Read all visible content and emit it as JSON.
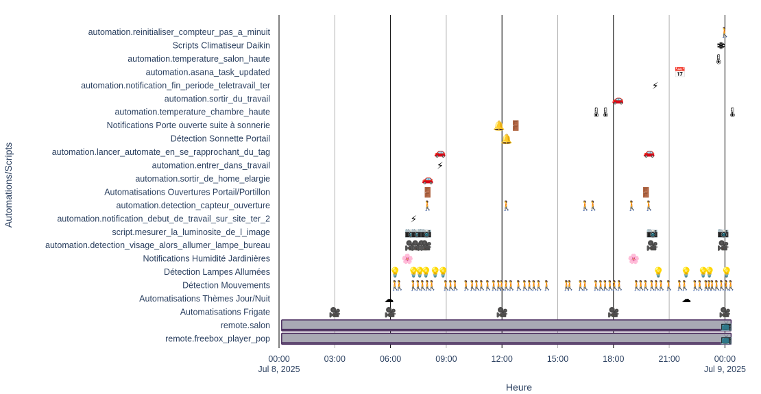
{
  "chart_data": {
    "type": "timeline",
    "xlabel": "Heure",
    "ylabel": "Automations/Scripts",
    "xlim": [
      "2025-07-08T00:00",
      "2025-07-09T01:10"
    ],
    "x_ticks": [
      {
        "time": "2025-07-08T00:00",
        "label": "00:00",
        "sub": "Jul 8, 2025"
      },
      {
        "time": "2025-07-08T03:00",
        "label": "03:00",
        "sub": ""
      },
      {
        "time": "2025-07-08T06:00",
        "label": "06:00",
        "sub": ""
      },
      {
        "time": "2025-07-08T09:00",
        "label": "09:00",
        "sub": ""
      },
      {
        "time": "2025-07-08T12:00",
        "label": "12:00",
        "sub": ""
      },
      {
        "time": "2025-07-08T15:00",
        "label": "15:00",
        "sub": ""
      },
      {
        "time": "2025-07-08T18:00",
        "label": "18:00",
        "sub": ""
      },
      {
        "time": "2025-07-08T21:00",
        "label": "21:00",
        "sub": ""
      },
      {
        "time": "2025-07-09T00:00",
        "label": "00:00",
        "sub": "Jul 9, 2025"
      }
    ],
    "major_gridlines": [
      "2025-07-08T00:00",
      "2025-07-08T06:00",
      "2025-07-08T12:00",
      "2025-07-08T18:00",
      "2025-07-09T00:00"
    ],
    "categories": [
      "automation.reinitialiser_compteur_pas_a_minuit",
      "Scripts Climatiseur Daikin",
      "automation.temperature_salon_haute",
      "automation.asana_task_updated",
      "automation.notification_fin_periode_teletravail_ter",
      "automation.sortir_du_travail",
      "automation.temperature_chambre_haute",
      "Notifications Porte ouverte suite à sonnerie",
      "Détection Sonnette Portail",
      "automation.lancer_automate_en_se_rapprochant_du_tag",
      "automation.entrer_dans_travail",
      "automation.sortir_de_home_elargie",
      "Automatisations Ouvertures Portail/Portillon",
      "automation.detection_capteur_ouverture",
      "automation.notification_debut_de_travail_sur_site_ter_2",
      "script.mesurer_la_luminosite_de_l_image",
      "automation.detection_visage_alors_allumer_lampe_bureau",
      "Notifications Humidité Jardinières",
      "Détection Lampes Allumées",
      "Détection Mouvements",
      "Automatisations Thèmes Jour/Nuit",
      "Automatisations Frigate",
      "remote.salon",
      "remote.freebox_player_pop"
    ],
    "icons": {
      "walker": "🚶",
      "snowflake": "❄",
      "thermometer": "🌡",
      "calendar": "📅",
      "lightning": "⚡",
      "car": "🚗",
      "bell": "🔔",
      "door": "🚪",
      "camera": "📷",
      "video-camera": "🎥",
      "flower": "🌸",
      "bulb": "💡",
      "cloud": "☁",
      "tv": "📺"
    },
    "series": [
      {
        "row": "automation.reinitialiser_compteur_pas_a_minuit",
        "icon": "walker",
        "times": [
          "00:00+1"
        ]
      },
      {
        "row": "Scripts Climatiseur Daikin",
        "icon": "snowflake",
        "times": [
          "23:45",
          "23:50"
        ]
      },
      {
        "row": "automation.temperature_salon_haute",
        "icon": "thermometer",
        "times": [
          "23:40"
        ]
      },
      {
        "row": "automation.asana_task_updated",
        "icon": "calendar",
        "times": [
          "21:35"
        ]
      },
      {
        "row": "automation.notification_fin_periode_teletravail_ter",
        "icon": "lightning",
        "times": [
          "20:15"
        ]
      },
      {
        "row": "automation.sortir_du_travail",
        "icon": "car",
        "times": [
          "18:15"
        ]
      },
      {
        "row": "automation.temperature_chambre_haute",
        "icon": "thermometer",
        "times": [
          "17:05",
          "17:35",
          "00:25+1"
        ]
      },
      {
        "row": "Notifications Porte ouverte suite à sonnerie",
        "icon": "bell",
        "times": [
          "11:50"
        ]
      },
      {
        "row": "Notifications Porte ouverte suite à sonnerie",
        "icon": "door",
        "times": [
          "12:45"
        ]
      },
      {
        "row": "Détection Sonnette Portail",
        "icon": "bell",
        "times": [
          "12:15"
        ]
      },
      {
        "row": "automation.lancer_automate_en_se_rapprochant_du_tag",
        "icon": "car",
        "times": [
          "08:40",
          "19:55"
        ]
      },
      {
        "row": "automation.entrer_dans_travail",
        "icon": "lightning",
        "times": [
          "08:40"
        ]
      },
      {
        "row": "automation.sortir_de_home_elargie",
        "icon": "car",
        "times": [
          "08:00"
        ]
      },
      {
        "row": "Automatisations Ouvertures Portail/Portillon",
        "icon": "door",
        "times": [
          "08:00",
          "19:45"
        ]
      },
      {
        "row": "automation.detection_capteur_ouverture",
        "icon": "walker",
        "times": [
          "08:00",
          "12:15",
          "16:30",
          "16:55",
          "19:00",
          "19:55"
        ]
      },
      {
        "row": "automation.notification_debut_de_travail_sur_site_ter_2",
        "icon": "lightning",
        "times": [
          "07:15"
        ]
      },
      {
        "row": "script.mesurer_la_luminosite_de_l_image",
        "icon": "camera",
        "times": [
          "07:05",
          "07:25",
          "07:45",
          "07:55",
          "20:05",
          "23:55"
        ]
      },
      {
        "row": "automation.detection_visage_alors_allumer_lampe_bureau",
        "icon": "video-camera",
        "times": [
          "07:05",
          "07:25",
          "07:45",
          "07:55",
          "20:05",
          "23:55"
        ]
      },
      {
        "row": "Notifications Humidité Jardinières",
        "icon": "flower",
        "times": [
          "06:55",
          "19:05"
        ]
      },
      {
        "row": "Détection Lampes Allumées",
        "icon": "bulb",
        "times": [
          "06:15",
          "07:15",
          "07:35",
          "07:55",
          "08:25",
          "08:50",
          "20:25",
          "21:55",
          "22:50",
          "23:10",
          "00:05+1"
        ]
      },
      {
        "row": "Détection Mouvements",
        "icon": "walker",
        "times": [
          "06:15",
          "06:30",
          "07:15",
          "07:30",
          "07:45",
          "08:00",
          "08:15",
          "09:00",
          "09:15",
          "09:30",
          "10:05",
          "10:25",
          "10:40",
          "10:55",
          "11:15",
          "11:35",
          "11:50",
          "12:00",
          "12:15",
          "12:30",
          "12:55",
          "13:15",
          "13:30",
          "13:45",
          "14:00",
          "14:25",
          "15:30",
          "15:40",
          "16:15",
          "16:30",
          "17:05",
          "17:20",
          "17:35",
          "17:50",
          "18:05",
          "18:20",
          "19:15",
          "19:30",
          "19:45",
          "20:05",
          "20:20",
          "20:35",
          "21:00",
          "21:35",
          "21:50",
          "22:25",
          "22:40",
          "23:00",
          "23:10",
          "23:20",
          "23:35",
          "23:50",
          "00:05+1",
          "00:20+1"
        ]
      },
      {
        "row": "Automatisations Thèmes Jour/Nuit",
        "icon": "cloud",
        "times": [
          "05:55",
          "21:55"
        ]
      },
      {
        "row": "Automatisations Frigate",
        "icon": "video-camera",
        "times": [
          "03:00",
          "06:00",
          "12:00",
          "18:00",
          "00:00+1"
        ]
      }
    ],
    "bars": [
      {
        "row": "remote.salon",
        "start": "00:35",
        "end": "00:20+1",
        "color": "#a9a9b4",
        "end_icon": "tv"
      },
      {
        "row": "remote.freebox_player_pop",
        "start": "00:35",
        "end": "00:20+1",
        "color": "#a9a9b4",
        "end_icon": "tv"
      }
    ],
    "colors": {
      "tick_text": "#2a3f5f",
      "major_grid": "#000000",
      "minor_grid": "#b0b0b0",
      "bar_edge": "#4a2c5e"
    }
  }
}
